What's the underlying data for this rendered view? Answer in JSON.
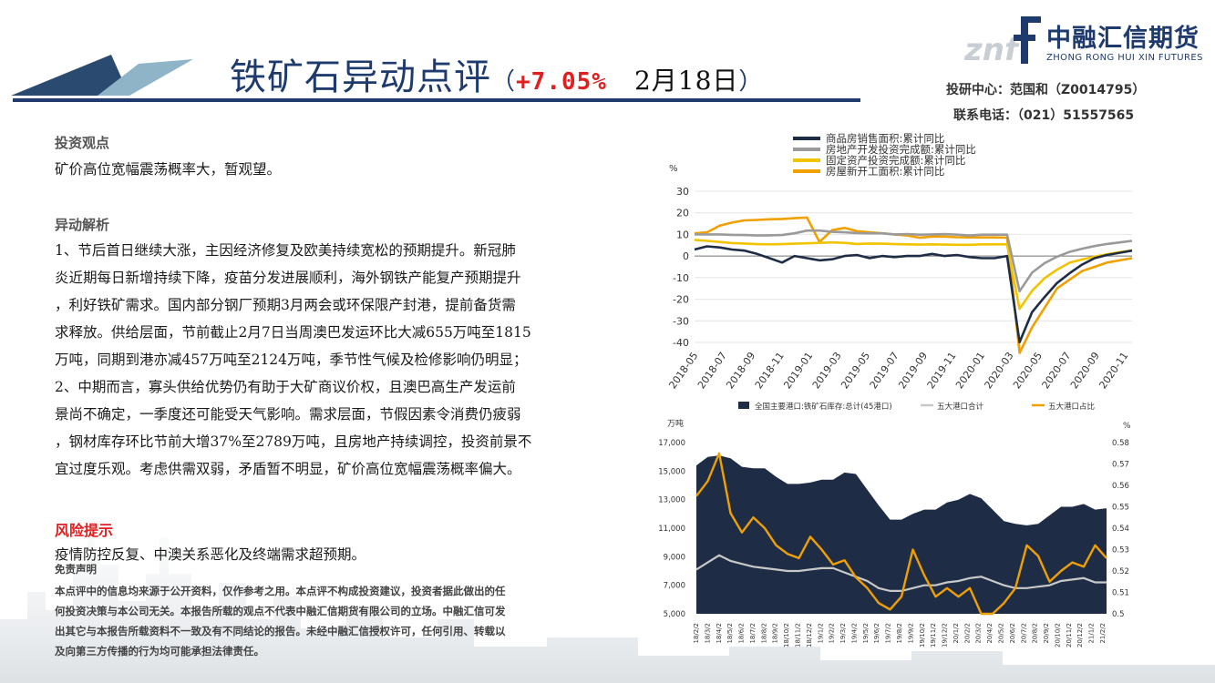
{
  "header": {
    "title": "铁矿石异动点评",
    "paren_open": "（",
    "change_pct": "+7.05%",
    "date": "2月18日",
    "paren_close": "）"
  },
  "logo": {
    "mark": "znf",
    "name_cn": "中融汇信期货",
    "name_en": "ZHONG RONG HUI XIN FUTURES"
  },
  "contact": {
    "analyst_line": "投研中心：范国和（Z0014795）",
    "phone_line": "联系电话：（021）51557565"
  },
  "sections": {
    "view_heading": "投资观点",
    "view_text": "矿价高位宽幅震荡概率大，暂观望。",
    "analysis_heading": "异动解析",
    "analysis_lines": [
      "1、节后首日继续大涨，主因经济修复及欧美持续宽松的预期提升。新冠肺",
      "炎近期每日新增持续下降，疫苗分发进展顺利，海外钢铁产能复产预期提升",
      "，利好铁矿需求。国内部分钢厂预期3月两会或环保限产封港，提前备货需",
      "求释放。供给层面，节前截止2月7日当周澳巴发运环比大减655万吨至1815",
      "万吨，同期到港亦减457万吨至2124万吨，季节性气候及检修影响仍明显；",
      "2、中期而言，寡头供给优势仍有助于大矿商议价权，且澳巴高生产发运前",
      "景尚不确定，一季度还可能受天气影响。需求层面，节假因素令消费仍疲弱",
      "，钢材库存环比节前大增37%至2789万吨，且房地产持续调控，投资前景不",
      "宜过度乐观。考虑供需双弱，矛盾暂不明显，矿价高位宽幅震荡概率偏大。"
    ],
    "risk_heading": "风险提示",
    "risk_text": "疫情防控反复、中澳关系恶化及终端需求超预期。",
    "disclaimer_heading": "免责声明",
    "disclaimer_lines": [
      "本点评中的信息均来源于公开资料，仅作参考之用。本点评不构成投资建议，投资者据此做出的任",
      "何投资决策与本公司无关。本报告所载的观点不代表中融汇信期货有限公司的立场。中融汇信可发",
      "出其它与本报告所载资料不一致及有不同结论的报告。未经中融汇信授权许可，任何引用、转载以",
      "及向第三方传播的行为均可能承担法律责任。"
    ]
  },
  "chart_data": [
    {
      "type": "line",
      "title": "",
      "ylabel": "%",
      "ylim": [
        -40,
        30
      ],
      "yticks": [
        30,
        20,
        10,
        0,
        -10,
        -20,
        -30,
        -40
      ],
      "xticks": [
        "2018-05",
        "2018-07",
        "2018-09",
        "2018-11",
        "2019-01",
        "2019-03",
        "2019-05",
        "2019-07",
        "2019-09",
        "2019-11",
        "2020-01",
        "2020-03",
        "2020-05",
        "2020-07",
        "2020-09",
        "2020-11"
      ],
      "legend_position": "top",
      "series": [
        {
          "name": "商品房销售面积:累计同比",
          "color": "#1e2d45",
          "values": [
            3,
            4.5,
            4,
            3,
            2.5,
            1,
            -1,
            -3,
            0,
            -1,
            -2,
            -1.5,
            0,
            0.5,
            -1,
            0,
            -0.5,
            0,
            0,
            1,
            0,
            0.5,
            -0.5,
            -1,
            -1,
            0,
            -39.9,
            -26,
            -19,
            -12.5,
            -8,
            -4,
            -1,
            0.5,
            1.5,
            2.5
          ]
        },
        {
          "name": "房地产开发投资完成额:累计同比",
          "color": "#9a9a9a",
          "values": [
            10,
            10,
            10,
            9.8,
            9.7,
            9.5,
            9.6,
            9.7,
            10.5,
            11.8,
            11.8,
            11.2,
            11,
            10.6,
            10.5,
            10.5,
            10,
            10.2,
            9.9,
            10,
            10.2,
            9.9,
            9.5,
            9.9,
            9.9,
            9.9,
            -16.3,
            -7.7,
            -3.3,
            -0.3,
            1.9,
            3.4,
            4.6,
            5.6,
            6.3,
            7
          ]
        },
        {
          "name": "固定资产投资完成额:累计同比",
          "color": "#f2c300",
          "values": [
            7.5,
            7,
            6.5,
            6,
            5.8,
            5.5,
            5.4,
            5.5,
            5.7,
            5.9,
            6.1,
            6.3,
            6.1,
            5.6,
            5.8,
            5.7,
            5.5,
            5.4,
            5.3,
            5.4,
            5.3,
            5.2,
            5.2,
            5.4,
            5.4,
            5.4,
            -24.5,
            -16.1,
            -10.3,
            -6.3,
            -3.1,
            -1.6,
            -0.3,
            0.8,
            1.8,
            2.6
          ]
        },
        {
          "name": "房屋新开工面积:累计同比",
          "color": "#f0a000",
          "values": [
            10.5,
            11,
            14,
            15.5,
            16.5,
            16.7,
            17,
            17.2,
            17.5,
            17.8,
            6.5,
            12,
            13,
            11.5,
            11,
            10.5,
            10,
            9.5,
            8.5,
            9,
            9,
            8.7,
            8.6,
            8.6,
            8.6,
            8.5,
            -44.9,
            -33,
            -24,
            -15,
            -11,
            -7,
            -5,
            -3,
            -2,
            -1
          ]
        }
      ]
    },
    {
      "type": "area",
      "title": "",
      "ylabel": "万吨",
      "y2label": "%",
      "ylim": [
        5000,
        17000
      ],
      "y2lim": [
        0.5,
        0.58
      ],
      "yticks_labels": [
        "17,000",
        "15,000",
        "13,000",
        "11,000",
        "9,000",
        "7,000",
        "5,000"
      ],
      "y2ticks_labels": [
        "0.58",
        "0.57",
        "0.56",
        "0.55",
        "0.54",
        "0.53",
        "0.52",
        "0.51",
        "0.5"
      ],
      "legend_position": "top",
      "xticks": [
        "18/2/2",
        "18/3/2",
        "18/4/2",
        "18/5/2",
        "18/6/2",
        "18/7/2",
        "18/8/2",
        "18/9/2",
        "18/10/2",
        "18/11/2",
        "18/12/2",
        "19/1/2",
        "19/2/2",
        "19/3/2",
        "19/4/2",
        "19/5/2",
        "19/6/2",
        "19/7/2",
        "19/8/2",
        "19/9/2",
        "19/10/2",
        "19/11/2",
        "19/12/2",
        "20/1/2",
        "20/2/2",
        "20/3/2",
        "20/4/2",
        "20/5/2",
        "20/6/2",
        "20/7/2",
        "20/8/2",
        "20/9/2",
        "20/10/2",
        "20/11/2",
        "20/12/2",
        "21/1/2",
        "21/2/2"
      ],
      "series": [
        {
          "name": "全国主要港口:铁矿石库存:总计(45港口)",
          "color": "#1e2d45",
          "axis": "left",
          "values": [
            15400,
            16000,
            16100,
            15900,
            15300,
            15200,
            15200,
            14600,
            14100,
            14100,
            14200,
            14400,
            14400,
            14900,
            14800,
            13700,
            12600,
            11600,
            11600,
            12000,
            12300,
            12300,
            12800,
            13000,
            13400,
            13100,
            12300,
            11500,
            11300,
            11200,
            11300,
            11900,
            12500,
            12500,
            12700,
            12300,
            12400
          ]
        },
        {
          "name": "五大港口合计",
          "color": "#c8c8c8",
          "axis": "left",
          "values": [
            8100,
            8600,
            9100,
            8700,
            8500,
            8300,
            8200,
            8100,
            8000,
            8000,
            8100,
            8200,
            8200,
            7900,
            7600,
            7300,
            6800,
            6600,
            6600,
            6800,
            7000,
            7000,
            7200,
            7300,
            7500,
            7600,
            7300,
            7000,
            6800,
            6800,
            6900,
            7000,
            7300,
            7400,
            7500,
            7200,
            7200
          ]
        },
        {
          "name": "五大港口占比",
          "color": "#f0a000",
          "axis": "right",
          "values": [
            0.555,
            0.562,
            0.575,
            0.547,
            0.538,
            0.545,
            0.54,
            0.532,
            0.528,
            0.526,
            0.536,
            0.53,
            0.523,
            0.525,
            0.517,
            0.512,
            0.505,
            0.502,
            0.508,
            0.53,
            0.518,
            0.508,
            0.512,
            0.508,
            0.512,
            0.5,
            0.498,
            0.505,
            0.512,
            0.532,
            0.527,
            0.515,
            0.52,
            0.524,
            0.522,
            0.532,
            0.526
          ]
        }
      ]
    }
  ]
}
